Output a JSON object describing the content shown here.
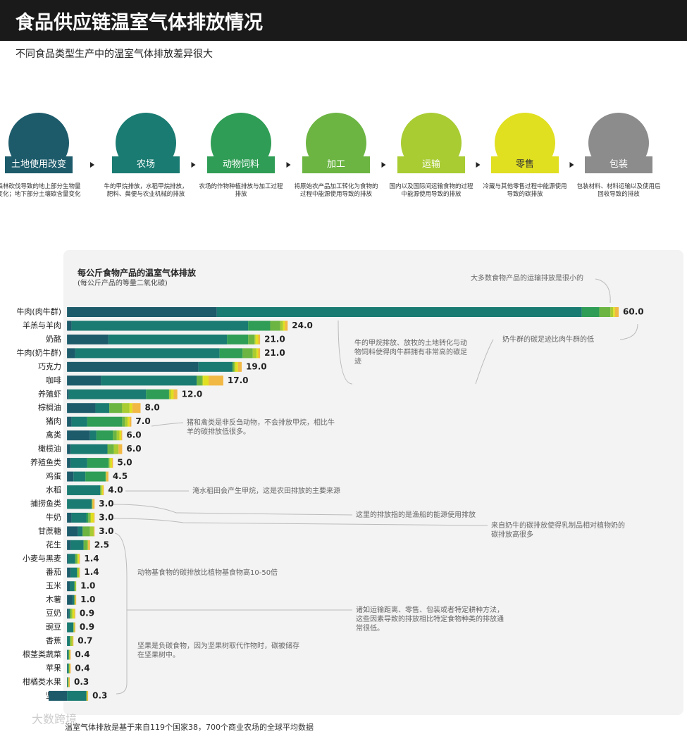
{
  "header": {
    "title": "食品供应链温室气体排放情况",
    "subtitle": "不同食品类型生产中的温室气体排放差异很大"
  },
  "chart_data": {
    "type": "stacked-barh",
    "title": "每公斤食物产品的温室气体排放",
    "subtitle": "(每公斤产品的等量二氧化碳)",
    "categories": [
      "牛肉(肉牛群)",
      "羊羔与羊肉",
      "奶酪",
      "牛肉(奶牛群)",
      "巧克力",
      "咖啡",
      "养殖虾",
      "棕榈油",
      "猪肉",
      "禽类",
      "橄榄油",
      "养殖鱼类",
      "鸡蛋",
      "水稻",
      "捕捞鱼类",
      "牛奶",
      "甘蔗糖",
      "花生",
      "小麦与黑麦",
      "番茄",
      "玉米",
      "木薯",
      "豆奶",
      "豌豆",
      "香蕉",
      "根茎类蔬菜",
      "苹果",
      "柑橘类水果",
      "坚果"
    ],
    "series": [
      {
        "name": "土地使用改变",
        "color": "#1d5b6b",
        "values": [
          16.3,
          0.5,
          4.5,
          0.9,
          14.3,
          3.7,
          0.2,
          3.1,
          0.5,
          2.5,
          0.4,
          0.4,
          0.7,
          0,
          0,
          0.5,
          1.2,
          0.4,
          0.1,
          0.4,
          0.3,
          0.6,
          0.2,
          0,
          0,
          0,
          0,
          0,
          -2.0
        ]
      },
      {
        "name": "农场",
        "color": "#1a7b72",
        "values": [
          39.7,
          19.2,
          12.9,
          15.7,
          3.7,
          10.4,
          8.4,
          1.5,
          1.7,
          0.7,
          4.0,
          1.8,
          1.3,
          3.6,
          2.7,
          1.6,
          0.5,
          1.4,
          0.8,
          0.7,
          0.5,
          0.2,
          0.1,
          0.7,
          0.3,
          0.2,
          0.2,
          0.1,
          2.1
        ]
      },
      {
        "name": "动物饲料",
        "color": "#2f9d55",
        "values": [
          1.9,
          2.4,
          2.3,
          2.5,
          0,
          0,
          2.5,
          0,
          3.8,
          1.8,
          0,
          2.3,
          2.2,
          0,
          0,
          0.2,
          0,
          0,
          0,
          0,
          0,
          0,
          0,
          0,
          0,
          0,
          0,
          0,
          0
        ]
      },
      {
        "name": "加工",
        "color": "#6cb543",
        "values": [
          1.2,
          1.1,
          0.7,
          1.1,
          0.2,
          0.6,
          0,
          1.4,
          0.3,
          0.4,
          0.7,
          0.1,
          0,
          0.1,
          0,
          0.2,
          0.8,
          0.4,
          0.2,
          0,
          0.1,
          0,
          0.2,
          0,
          0.1,
          0,
          0,
          0,
          0
        ]
      },
      {
        "name": "运输",
        "color": "#a8cc32",
        "values": [
          0.3,
          0.3,
          0.1,
          0.4,
          0.1,
          0.1,
          0.2,
          0.8,
          0.3,
          0.3,
          0.5,
          0.1,
          0.1,
          0.1,
          0.1,
          0.1,
          0.4,
          0.1,
          0.1,
          0.2,
          0.1,
          0.1,
          0.1,
          0.1,
          0.2,
          0.1,
          0.1,
          0.1,
          0.1
        ]
      },
      {
        "name": "零售",
        "color": "#e0df20",
        "values": [
          0.2,
          0.2,
          0.3,
          0.2,
          0.3,
          0.6,
          0.3,
          0.3,
          0.2,
          0.2,
          0,
          0.2,
          0,
          0.1,
          0,
          0.3,
          0,
          0,
          0.1,
          0,
          0,
          0,
          0.2,
          0,
          0,
          0,
          0,
          0,
          0
        ]
      },
      {
        "name": "包装",
        "color": "#f2b844",
        "values": [
          0.4,
          0.3,
          0.2,
          0.2,
          0.4,
          1.6,
          0.4,
          0.9,
          0.2,
          0.1,
          0.4,
          0.1,
          0.2,
          0.1,
          0.2,
          0.1,
          0.1,
          0.2,
          0.1,
          0.1,
          0,
          0.1,
          0.1,
          0.1,
          0.1,
          0.1,
          0.1,
          0.1,
          0.1
        ]
      }
    ],
    "total_labels": [
      "60.0",
      "24.0",
      "21.0",
      "21.0",
      "19.0",
      "17.0",
      "12.0",
      "8.0",
      "7.0",
      "6.0",
      "6.0",
      "5.0",
      "4.5",
      "4.0",
      "3.0",
      "3.0",
      "3.0",
      "2.5",
      "1.4",
      "1.4",
      "1.0",
      "1.0",
      "0.9",
      "0.9",
      "0.7",
      "0.4",
      "0.4",
      "0.3",
      "0.3"
    ],
    "xlim": [
      -2,
      60
    ],
    "legend_colors": [
      "#1d5b6b",
      "#1a7b72",
      "#2f9d55",
      "#6cb543",
      "#a8cc32",
      "#e0df20",
      "#8c8c8c"
    ],
    "legend_descriptions": [
      "森林砍伐导致的地上部分生物量变化；地下部分土壤碳含量变化",
      "牛的甲烷排放，水稻甲烷排放，肥料、粪便与农业机械的排放",
      "农场的作物种植排放与加工过程排放",
      "将原始农产品加工转化为食物的过程中能源使用导致的排放",
      "国内以及国际间运输食物的过程中能源使用导致的排放",
      "冷藏与其他零售过程中能源使用导致的碳排放",
      "包装材料、材料运输以及使用后回收导致的排放"
    ],
    "annotations": [
      "大多数食物产品的运输排放是很小的",
      "牛的甲烷排放、放牧的土地转化与动物饲料使得肉牛群拥有非常高的碳足迹",
      "奶牛群的碳足迹比肉牛群的低",
      "猪和禽类是非反刍动物，不会排放甲烷，相比牛羊的碳排放低很多。",
      "淹水稻田会产生甲烷，这是农田排放的主要来源",
      "这里的排放指的是渔船的能源使用排放",
      "来自奶牛的碳排放使得乳制品相对植物奶的碳排放高很多",
      "动物基食物的碳排放比植物基食物高10-50倍",
      "诸如运输距离、零售、包装或者特定耕种方法，这些因素导致的排放相比特定食物种类的排放通常很低。",
      "坚果是负碳食物，因为坚果树取代作物时，碳被储存在坚果树中。"
    ],
    "note": "温室气体排放是基于来自119个国家38，700个商业农场的全球平均数据"
  },
  "watermark": "大数跨境"
}
